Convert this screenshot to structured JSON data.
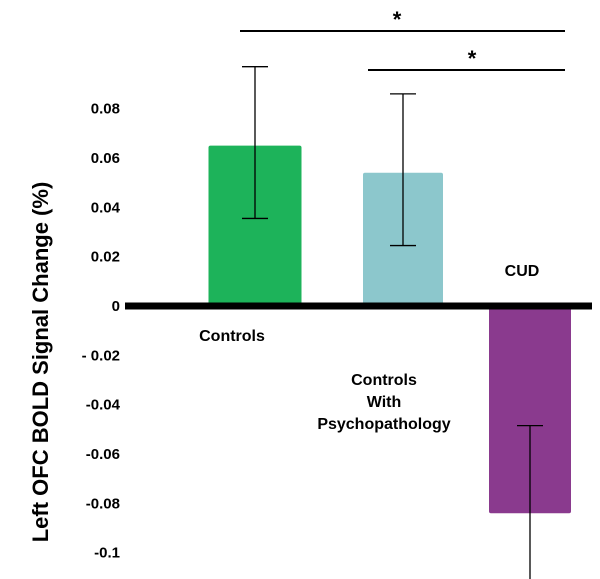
{
  "chart_data": {
    "type": "bar",
    "ylabel": "Left OFC BOLD Signal Change (%)",
    "ylim": [
      -0.1,
      0.08
    ],
    "yticks": [
      {
        "value": 0.08,
        "label": "0.08"
      },
      {
        "value": 0.06,
        "label": "0.06"
      },
      {
        "value": 0.04,
        "label": "0.04"
      },
      {
        "value": 0.02,
        "label": "0.02"
      },
      {
        "value": 0,
        "label": "0"
      },
      {
        "value": -0.02,
        "label": "- 0.02"
      },
      {
        "value": -0.04,
        "label": "-0.04"
      },
      {
        "value": -0.06,
        "label": "-0.06"
      },
      {
        "value": -0.08,
        "label": "-0.08"
      },
      {
        "value": -0.1,
        "label": "-0.1"
      }
    ],
    "categories": [
      "Controls",
      "Controls With Psychopathology",
      "CUD"
    ],
    "category_label_lines": [
      [
        "Controls"
      ],
      [
        "Controls",
        "With",
        "Psychopathology"
      ],
      [
        "CUD"
      ]
    ],
    "values": [
      0.065,
      0.054,
      -0.084
    ],
    "error_low": [
      0.0355,
      0.0245,
      -0.1115
    ],
    "error_high": [
      0.097,
      0.086,
      -0.0485
    ],
    "colors": [
      "#1db35a",
      "#8cc7cc",
      "#8a3a8e"
    ],
    "significance": [
      {
        "from": 0,
        "to": 2,
        "label": "*"
      },
      {
        "from": 1,
        "to": 2,
        "label": "*"
      }
    ],
    "grid": false,
    "legend": "none"
  }
}
